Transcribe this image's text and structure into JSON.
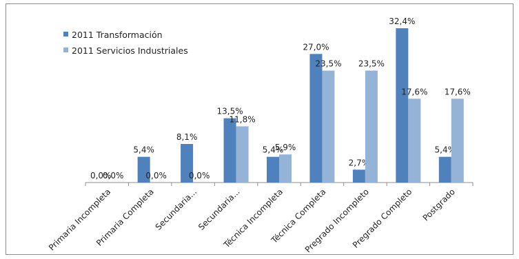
{
  "chart_data": {
    "type": "bar",
    "title": "",
    "xlabel": "",
    "ylabel": "",
    "ylim": [
      0,
      35
    ],
    "grid": false,
    "legend_position": "top-left",
    "categories": [
      "Primaria Incompleta",
      "Primaria Completa",
      "Secundaria...",
      "Secundaria...",
      "Técnica Incompleta",
      "Técnica Completa",
      "Pregrado Incompleto",
      "Pregrado Completo",
      "Postgrado"
    ],
    "series": [
      {
        "name": "2011 Transformación",
        "color": "#4F81BD",
        "values": [
          0.0,
          5.4,
          8.1,
          13.5,
          5.4,
          27.0,
          2.7,
          32.4,
          5.4
        ],
        "labels": [
          "0,0%",
          "5,4%",
          "8,1%",
          "13,5%",
          "5,4%",
          "27,0%",
          "2,7%",
          "32,4%",
          "5,4%"
        ]
      },
      {
        "name": "2011 Servicios Industriales",
        "color": "#95B3D7",
        "values": [
          0.0,
          0.0,
          0.0,
          11.8,
          5.9,
          23.5,
          23.5,
          17.6,
          17.6
        ],
        "labels": [
          "0,0%",
          "0,0%",
          "0,0%",
          "11,8%",
          "5,9%",
          "23,5%",
          "23,5%",
          "17,6%",
          "17,6%"
        ]
      }
    ]
  }
}
